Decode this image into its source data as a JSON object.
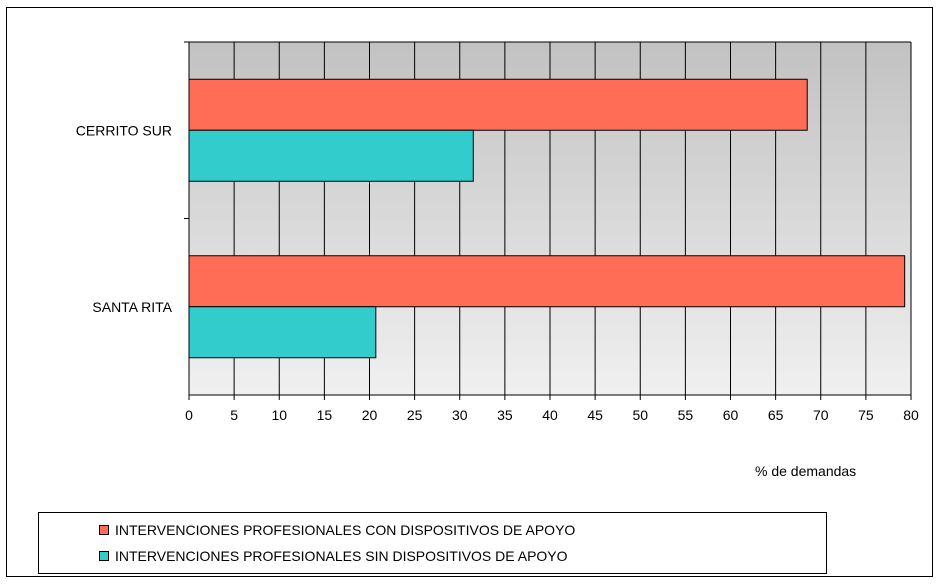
{
  "chart_data": {
    "type": "bar",
    "orientation": "horizontal",
    "categories": [
      "CERRITO SUR",
      "SANTA RITA"
    ],
    "series": [
      {
        "name": "INTERVENCIONES PROFESIONALES CON DISPOSITIVOS DE APOYO",
        "values": [
          68.5,
          79.3
        ],
        "color": "#ff6d57"
      },
      {
        "name": "INTERVENCIONES PROFESIONALES SIN DISPOSITIVOS DE APOYO",
        "values": [
          31.5,
          20.7
        ],
        "color": "#33cccc"
      }
    ],
    "xlabel": "% de demandas",
    "xlim": [
      0,
      80
    ],
    "xticks": [
      "0",
      "5",
      "10",
      "15",
      "20",
      "25",
      "30",
      "35",
      "40",
      "45",
      "50",
      "55",
      "60",
      "65",
      "70",
      "75",
      "80"
    ],
    "grid": true,
    "plot_background": "gray-gradient",
    "legend_position": "bottom"
  }
}
